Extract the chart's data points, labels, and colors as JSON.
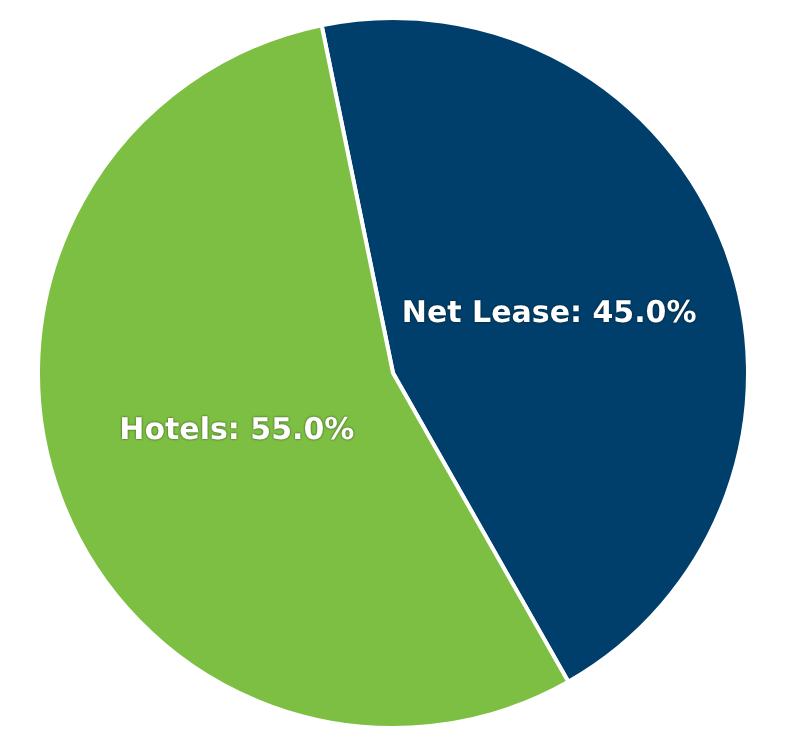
{
  "chart_data": {
    "type": "pie",
    "categories": [
      "Net Lease",
      "Hotels"
    ],
    "values": [
      45,
      55
    ],
    "colors": [
      "#003f6b",
      "#7dbf42"
    ],
    "value_labels": [
      "45.0%",
      "55.0%"
    ],
    "legend": false
  }
}
